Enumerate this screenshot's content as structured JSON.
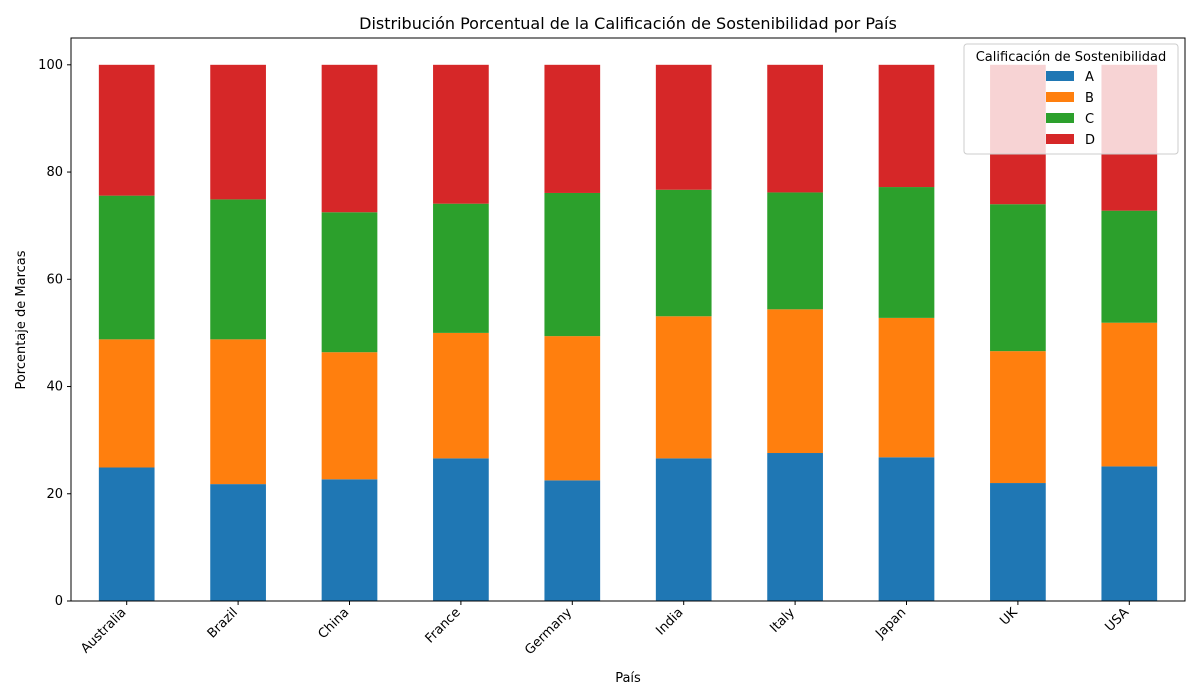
{
  "chart_data": {
    "type": "bar",
    "stacked": true,
    "title": "Distribución Porcentual de la Calificación de Sostenibilidad por País",
    "xlabel": "País",
    "ylabel": "Porcentaje de Marcas",
    "ylim": [
      0,
      105
    ],
    "yticks": [
      0,
      20,
      40,
      60,
      80,
      100
    ],
    "grid": false,
    "categories": [
      "Australia",
      "Brazil",
      "China",
      "France",
      "Germany",
      "India",
      "Italy",
      "Japan",
      "UK",
      "USA"
    ],
    "series": [
      {
        "name": "A",
        "color": "#1f77b4",
        "values": [
          24.9,
          21.8,
          22.7,
          26.6,
          22.5,
          26.6,
          27.6,
          26.8,
          22.0,
          25.1
        ]
      },
      {
        "name": "B",
        "color": "#ff7f0e",
        "values": [
          23.9,
          27.0,
          23.7,
          23.4,
          26.9,
          26.5,
          26.8,
          26.0,
          24.6,
          26.8
        ]
      },
      {
        "name": "C",
        "color": "#2ca02c",
        "values": [
          26.8,
          26.1,
          26.1,
          24.1,
          26.7,
          23.6,
          21.8,
          24.4,
          27.4,
          20.9
        ]
      },
      {
        "name": "D",
        "color": "#d62728",
        "values": [
          24.4,
          25.1,
          27.5,
          25.9,
          23.9,
          23.3,
          23.8,
          22.8,
          26.0,
          27.2
        ]
      }
    ],
    "legend": {
      "title": "Calificación de Sostenibilidad",
      "position": "top-right"
    }
  }
}
